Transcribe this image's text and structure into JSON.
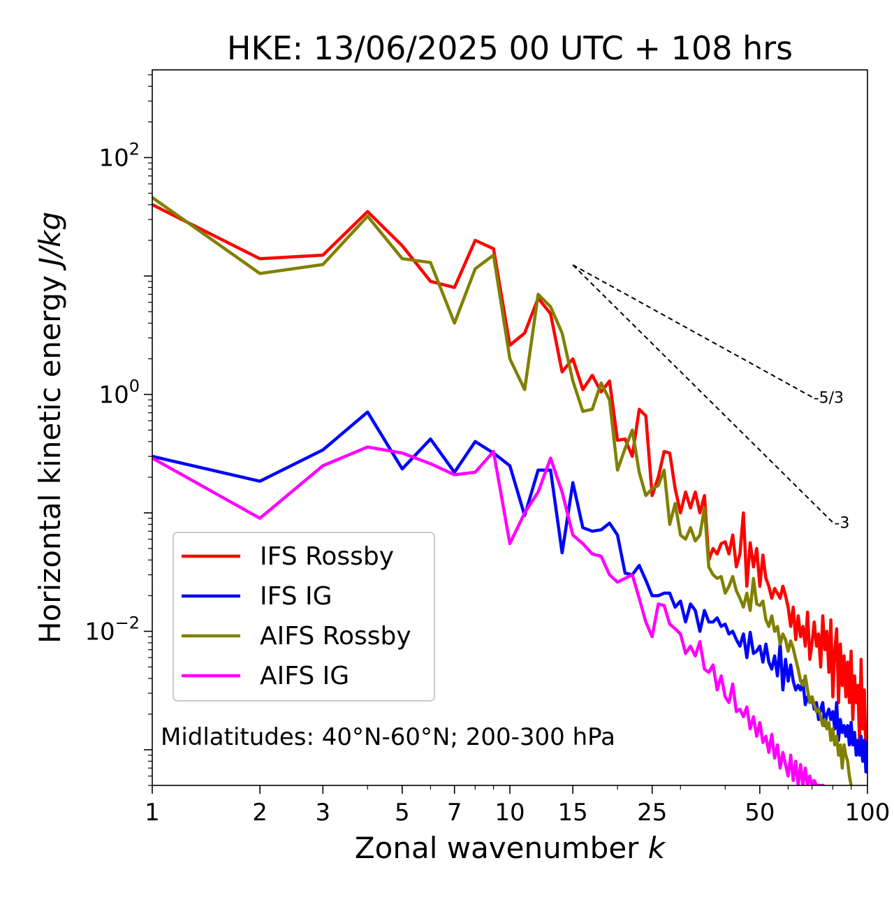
{
  "chart_data": {
    "type": "line",
    "title": "HKE: 13/06/2025 00 UTC + 108 hrs",
    "xlabel": "Zonal wavenumber k",
    "ylabel": "Horizontal kinetic energy J/kg",
    "x_scale": "log",
    "y_scale": "log",
    "xlim": [
      1,
      100
    ],
    "ylim": [
      0.0005,
      550
    ],
    "x_ticks": [
      1,
      2,
      3,
      5,
      7,
      10,
      15,
      25,
      50,
      100
    ],
    "y_ticks": [
      {
        "value": 0.01,
        "base": "10",
        "exp": "−2"
      },
      {
        "value": 1,
        "base": "10",
        "exp": "0"
      },
      {
        "value": 100,
        "base": "10",
        "exp": "2"
      }
    ],
    "annotation": "Midlatitudes: 40°N-60°N; 200-300 hPa",
    "legend_position": "lower-left",
    "reference_slopes": [
      {
        "label": "-5/3",
        "x": [
          15,
          70
        ],
        "y": [
          12.4,
          0.95
        ]
      },
      {
        "label": "-3",
        "x": [
          15,
          80
        ],
        "y": [
          12.4,
          0.083
        ]
      }
    ],
    "series": [
      {
        "name": "IFS Rossby",
        "color": "#ff0000",
        "x": [
          1,
          2,
          3,
          4,
          5,
          6,
          7,
          8,
          9,
          10,
          11,
          12,
          13,
          14,
          15,
          16,
          17,
          18,
          19,
          20,
          21,
          22,
          23,
          24,
          25,
          26,
          27,
          28,
          29,
          30,
          31,
          32,
          33,
          34,
          35,
          36,
          37,
          38,
          39,
          40,
          41,
          42,
          43,
          44,
          45,
          46,
          47,
          48,
          49,
          50,
          51,
          52,
          53,
          54,
          55,
          56,
          57,
          58,
          59,
          60,
          61,
          62,
          63,
          64,
          65,
          66,
          67,
          68,
          69,
          70,
          71,
          72,
          73,
          74,
          75,
          76,
          77,
          78,
          79,
          80,
          81,
          82,
          83,
          84,
          85,
          86,
          87,
          88,
          89,
          90,
          91,
          92,
          93,
          94,
          95,
          96,
          97,
          98,
          99,
          100
        ],
        "y": [
          40,
          14,
          15,
          35,
          18,
          9,
          8,
          20,
          17,
          2.6,
          3.3,
          6.5,
          4.8,
          1.55,
          2.0,
          1.1,
          1.45,
          1.05,
          1.3,
          0.41,
          0.42,
          0.3,
          0.75,
          0.66,
          0.14,
          0.2,
          0.33,
          0.32,
          0.16,
          0.1,
          0.15,
          0.11,
          0.15,
          0.1,
          0.14,
          0.04,
          0.05,
          0.045,
          0.055,
          0.057,
          0.045,
          0.065,
          0.035,
          0.045,
          0.1,
          0.024,
          0.056,
          0.035,
          0.05,
          0.024,
          0.044,
          0.028,
          0.024,
          0.019,
          0.023,
          0.021,
          0.019,
          0.024,
          0.02,
          0.016,
          0.011,
          0.016,
          0.0085,
          0.0135,
          0.009,
          0.011,
          0.0075,
          0.0145,
          0.0058,
          0.008,
          0.012,
          0.0075,
          0.0095,
          0.005,
          0.0135,
          0.007,
          0.01,
          0.0045,
          0.0125,
          0.0028,
          0.0068,
          0.0105,
          0.0025,
          0.0078,
          0.0035,
          0.0062,
          0.0028,
          0.0055,
          0.0025,
          0.0068,
          0.0018,
          0.0042,
          0.0025,
          0.0035,
          0.0012,
          0.0058,
          0.0015,
          0.0032,
          0.0009,
          0.0016
        ]
      },
      {
        "name": "IFS IG",
        "color": "#0000ff",
        "x": [
          1,
          2,
          3,
          4,
          5,
          6,
          7,
          8,
          9,
          10,
          11,
          12,
          13,
          14,
          15,
          16,
          17,
          18,
          19,
          20,
          21,
          22,
          23,
          24,
          25,
          26,
          27,
          28,
          29,
          30,
          31,
          32,
          33,
          34,
          35,
          36,
          37,
          38,
          39,
          40,
          41,
          42,
          43,
          44,
          45,
          46,
          47,
          48,
          49,
          50,
          51,
          52,
          53,
          54,
          55,
          56,
          57,
          58,
          59,
          60,
          61,
          62,
          63,
          64,
          65,
          66,
          67,
          68,
          69,
          70,
          71,
          72,
          73,
          74,
          75,
          76,
          77,
          78,
          79,
          80,
          81,
          82,
          83,
          84,
          85,
          86,
          87,
          88,
          89,
          90,
          91,
          92,
          93,
          94,
          95,
          96,
          97,
          98,
          99,
          100
        ],
        "y": [
          0.3,
          0.185,
          0.34,
          0.71,
          0.235,
          0.42,
          0.22,
          0.4,
          0.32,
          0.25,
          0.095,
          0.23,
          0.23,
          0.046,
          0.18,
          0.075,
          0.07,
          0.072,
          0.082,
          0.065,
          0.031,
          0.03,
          0.036,
          0.027,
          0.02,
          0.02,
          0.021,
          0.021,
          0.016,
          0.018,
          0.012,
          0.017,
          0.015,
          0.01,
          0.015,
          0.012,
          0.012,
          0.013,
          0.011,
          0.0115,
          0.0095,
          0.01,
          0.0085,
          0.0075,
          0.0095,
          0.006,
          0.0098,
          0.0065,
          0.0068,
          0.0075,
          0.0055,
          0.0078,
          0.0055,
          0.0048,
          0.0062,
          0.0042,
          0.0078,
          0.0032,
          0.0058,
          0.0038,
          0.0052,
          0.0038,
          0.0032,
          0.0035,
          0.0032,
          0.0038,
          0.0024,
          0.0028,
          0.0025,
          0.0028,
          0.0022,
          0.0025,
          0.0018,
          0.0022,
          0.0025,
          0.0016,
          0.002,
          0.0022,
          0.0018,
          0.0021,
          0.0015,
          0.0025,
          0.0012,
          0.0018,
          0.0014,
          0.0016,
          0.0013,
          0.0016,
          0.0011,
          0.0017,
          0.0011,
          0.0014,
          0.0009,
          0.0012,
          0.0009,
          0.0013,
          0.0008,
          0.0012,
          0.00065,
          0.00115
        ]
      },
      {
        "name": "AIFS Rossby",
        "color": "#808000",
        "x": [
          1,
          2,
          3,
          4,
          5,
          6,
          7,
          8,
          9,
          10,
          11,
          12,
          13,
          14,
          15,
          16,
          17,
          18,
          19,
          20,
          21,
          22,
          23,
          24,
          25,
          26,
          27,
          28,
          29,
          30,
          31,
          32,
          33,
          34,
          35,
          36,
          37,
          38,
          39,
          40,
          41,
          42,
          43,
          44,
          45,
          46,
          47,
          48,
          49,
          50,
          51,
          52,
          53,
          54,
          55,
          56,
          57,
          58,
          59,
          60,
          61,
          62,
          63,
          64,
          65,
          66,
          67,
          68,
          69,
          70,
          71,
          72,
          73,
          74,
          75,
          76,
          77,
          78,
          79,
          80,
          81,
          82,
          83,
          84,
          85,
          86,
          87,
          88,
          89,
          90
        ],
        "y": [
          46,
          10.5,
          12.5,
          32,
          14,
          13,
          4,
          11.5,
          15,
          2.0,
          1.1,
          7.0,
          5.5,
          3.3,
          1.3,
          0.72,
          0.75,
          1.25,
          0.9,
          0.23,
          0.35,
          0.5,
          0.22,
          0.14,
          0.16,
          0.17,
          0.23,
          0.08,
          0.12,
          0.065,
          0.06,
          0.075,
          0.058,
          0.065,
          0.11,
          0.035,
          0.03,
          0.028,
          0.029,
          0.021,
          0.024,
          0.029,
          0.022,
          0.019,
          0.016,
          0.021,
          0.015,
          0.028,
          0.017,
          0.0165,
          0.018,
          0.0125,
          0.011,
          0.0135,
          0.01,
          0.011,
          0.0078,
          0.0095,
          0.0085,
          0.0068,
          0.0083,
          0.0072,
          0.0058,
          0.0048,
          0.0038,
          0.0035,
          0.0042,
          0.0032,
          0.0025,
          0.0028,
          0.0024,
          0.0021,
          0.0022,
          0.0019,
          0.0016,
          0.0018,
          0.0015,
          0.0017,
          0.0012,
          0.0015,
          0.0011,
          0.0013,
          0.0009,
          0.0011,
          0.0007,
          0.0011,
          0.0009,
          0.0008,
          0.0006,
          0.0005
        ]
      },
      {
        "name": "AIFS IG",
        "color": "#ff00ff",
        "x": [
          1,
          2,
          3,
          4,
          5,
          6,
          7,
          8,
          9,
          10,
          11,
          12,
          13,
          14,
          15,
          16,
          17,
          18,
          19,
          20,
          21,
          22,
          23,
          24,
          25,
          26,
          27,
          28,
          29,
          30,
          31,
          32,
          33,
          34,
          35,
          36,
          37,
          38,
          39,
          40,
          41,
          42,
          43,
          44,
          45,
          46,
          47,
          48,
          49,
          50,
          51,
          52,
          53,
          54,
          55,
          56,
          57,
          58,
          59,
          60,
          61,
          62,
          63,
          64,
          65,
          66,
          67,
          68,
          69,
          70,
          71,
          72,
          73,
          74,
          75
        ],
        "y": [
          0.29,
          0.09,
          0.25,
          0.36,
          0.32,
          0.26,
          0.21,
          0.22,
          0.33,
          0.055,
          0.1,
          0.15,
          0.29,
          0.15,
          0.065,
          0.055,
          0.045,
          0.043,
          0.03,
          0.026,
          0.028,
          0.03,
          0.019,
          0.012,
          0.009,
          0.017,
          0.0165,
          0.0115,
          0.0105,
          0.0095,
          0.0065,
          0.0075,
          0.0062,
          0.0082,
          0.0048,
          0.0045,
          0.0052,
          0.0032,
          0.0042,
          0.0028,
          0.0025,
          0.0036,
          0.0021,
          0.0022,
          0.0019,
          0.0023,
          0.0015,
          0.0019,
          0.0013,
          0.0017,
          0.00115,
          0.0013,
          0.00095,
          0.00135,
          0.00085,
          0.0011,
          0.0007,
          0.00095,
          0.00075,
          0.0006,
          0.0009,
          0.00055,
          0.0008,
          0.0005,
          0.00075,
          0.0005,
          0.0007,
          0.0005,
          0.0006,
          0.0005,
          0.00055,
          0.0005,
          0.0005,
          0.0005,
          0.0005
        ]
      }
    ]
  }
}
